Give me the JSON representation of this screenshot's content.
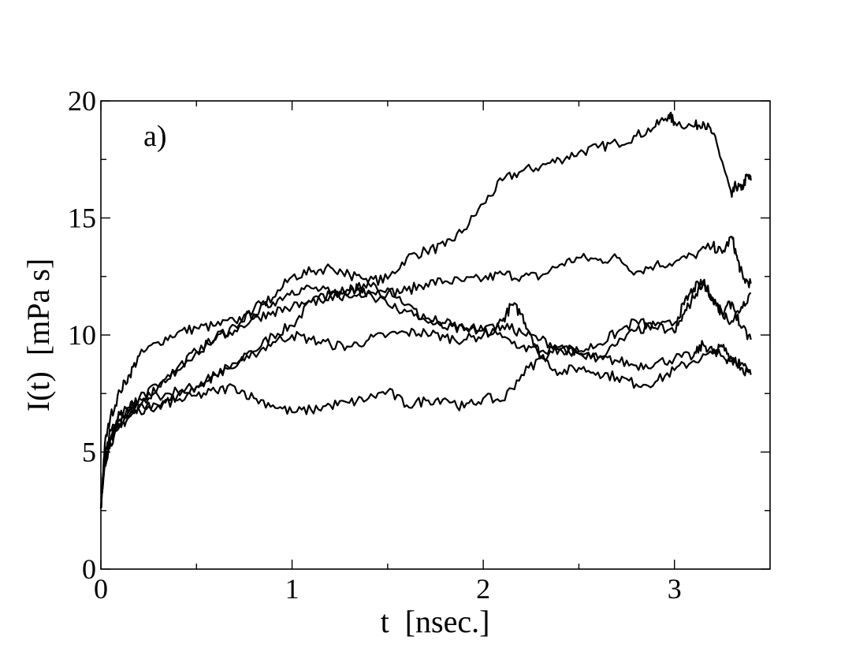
{
  "chart_data": {
    "type": "line",
    "panel_label": "a)",
    "xlabel": "t  [nsec.]",
    "ylabel": "I(t)  [mPa s]",
    "xlim": [
      0,
      3.5
    ],
    "ylim": [
      0,
      20
    ],
    "x_major_ticks": [
      0,
      1,
      2,
      3
    ],
    "x_tick_labels": [
      "0",
      "1",
      "2",
      "3"
    ],
    "x_minor_ticks": [
      0.5,
      1.5,
      2.5
    ],
    "y_major_ticks": [
      0,
      5,
      10,
      15,
      20
    ],
    "y_tick_labels": [
      "0",
      "5",
      "10",
      "15",
      "20"
    ],
    "y_minor_ticks": [
      2.5,
      7.5,
      12.5,
      17.5
    ],
    "grid": false,
    "line_color": "#000000",
    "series": [
      {
        "x": [
          0,
          0.02,
          0.05,
          0.1,
          0.15,
          0.2,
          0.3,
          0.4,
          0.5,
          0.6,
          0.7,
          0.8,
          0.9,
          1.0,
          1.1,
          1.2,
          1.3,
          1.4,
          1.5,
          1.6,
          1.7,
          1.8,
          1.9,
          2.0,
          2.1,
          2.2,
          2.3,
          2.4,
          2.5,
          2.6,
          2.7,
          2.8,
          2.9,
          2.97,
          3.0,
          3.1,
          3.15,
          3.2,
          3.25,
          3.3,
          3.32,
          3.35,
          3.38,
          3.4
        ],
        "y": [
          2.6,
          4.8,
          5.6,
          6.6,
          6.9,
          7.3,
          7.4,
          7.6,
          7.8,
          8.3,
          8.6,
          9.3,
          10.0,
          10.4,
          11.4,
          11.7,
          11.8,
          12.3,
          12.4,
          13.3,
          13.6,
          13.8,
          14.5,
          15.6,
          16.6,
          17.0,
          17.2,
          17.5,
          17.8,
          18.0,
          18.2,
          18.5,
          18.9,
          19.4,
          19.1,
          18.9,
          19.1,
          18.6,
          17.4,
          15.9,
          16.4,
          16.2,
          16.8,
          16.6
        ]
      },
      {
        "x": [
          0,
          0.02,
          0.05,
          0.1,
          0.15,
          0.2,
          0.3,
          0.4,
          0.5,
          0.6,
          0.7,
          0.8,
          0.9,
          1.0,
          1.1,
          1.2,
          1.3,
          1.4,
          1.5,
          1.6,
          1.7,
          1.8,
          1.9,
          2.0,
          2.1,
          2.2,
          2.3,
          2.4,
          2.5,
          2.6,
          2.7,
          2.8,
          2.9,
          3.0,
          3.1,
          3.2,
          3.25,
          3.3,
          3.33,
          3.36,
          3.4
        ],
        "y": [
          2.6,
          5.3,
          6.5,
          7.6,
          8.3,
          9.1,
          9.7,
          10.1,
          10.3,
          10.4,
          10.6,
          10.9,
          11.4,
          11.9,
          12.0,
          11.8,
          11.6,
          11.9,
          11.8,
          11.9,
          12.2,
          12.3,
          12.3,
          12.4,
          12.6,
          12.5,
          12.5,
          13.0,
          13.3,
          13.2,
          13.3,
          12.7,
          13.0,
          13.1,
          13.4,
          13.8,
          13.5,
          14.2,
          13.2,
          12.4,
          12.2
        ]
      },
      {
        "x": [
          0,
          0.02,
          0.05,
          0.1,
          0.15,
          0.2,
          0.3,
          0.4,
          0.5,
          0.6,
          0.7,
          0.8,
          0.9,
          1.0,
          1.1,
          1.2,
          1.3,
          1.4,
          1.5,
          1.6,
          1.7,
          1.8,
          1.9,
          2.0,
          2.1,
          2.15,
          2.2,
          2.25,
          2.3,
          2.4,
          2.5,
          2.6,
          2.7,
          2.8,
          2.9,
          3.0,
          3.1,
          3.2,
          3.25,
          3.3,
          3.35,
          3.4
        ],
        "y": [
          2.6,
          4.6,
          5.5,
          6.2,
          6.6,
          7.0,
          7.8,
          8.6,
          9.3,
          9.8,
          10.4,
          11.1,
          11.6,
          12.5,
          12.7,
          12.9,
          12.6,
          12.2,
          12.0,
          11.3,
          10.6,
          10.3,
          10.2,
          10.2,
          10.6,
          11.3,
          10.9,
          10.0,
          9.1,
          8.4,
          8.6,
          8.4,
          8.2,
          7.9,
          8.0,
          8.5,
          8.9,
          9.2,
          9.5,
          9.0,
          8.6,
          8.3
        ]
      },
      {
        "x": [
          0,
          0.02,
          0.05,
          0.1,
          0.15,
          0.2,
          0.3,
          0.4,
          0.5,
          0.6,
          0.7,
          0.8,
          0.9,
          1.0,
          1.1,
          1.2,
          1.3,
          1.4,
          1.5,
          1.6,
          1.7,
          1.8,
          1.9,
          2.0,
          2.1,
          2.2,
          2.3,
          2.4,
          2.5,
          2.6,
          2.7,
          2.8,
          2.9,
          3.0,
          3.1,
          3.15,
          3.2,
          3.25,
          3.3,
          3.35,
          3.4
        ],
        "y": [
          2.6,
          4.5,
          5.4,
          6.1,
          6.5,
          6.8,
          7.0,
          7.4,
          7.8,
          8.3,
          8.8,
          9.2,
          9.7,
          10.0,
          9.8,
          9.6,
          9.5,
          9.8,
          10.0,
          10.1,
          10.1,
          9.9,
          9.8,
          10.0,
          10.4,
          10.1,
          9.8,
          9.5,
          9.2,
          9.0,
          8.9,
          8.7,
          8.8,
          9.0,
          9.1,
          9.6,
          9.3,
          9.1,
          8.9,
          8.8,
          8.5
        ]
      },
      {
        "x": [
          0,
          0.02,
          0.05,
          0.1,
          0.15,
          0.2,
          0.3,
          0.4,
          0.5,
          0.6,
          0.7,
          0.8,
          0.9,
          1.0,
          1.1,
          1.2,
          1.3,
          1.4,
          1.5,
          1.6,
          1.7,
          1.8,
          1.9,
          2.0,
          2.1,
          2.2,
          2.3,
          2.4,
          2.5,
          2.6,
          2.7,
          2.8,
          2.9,
          3.0,
          3.05,
          3.1,
          3.15,
          3.2,
          3.25,
          3.3,
          3.35,
          3.4
        ],
        "y": [
          2.6,
          4.9,
          5.9,
          6.6,
          6.8,
          6.9,
          7.0,
          7.2,
          7.4,
          7.6,
          7.8,
          7.3,
          7.0,
          6.7,
          6.8,
          7.0,
          7.1,
          7.3,
          7.6,
          7.0,
          7.2,
          7.3,
          6.9,
          7.3,
          7.2,
          8.3,
          9.0,
          9.4,
          9.3,
          9.6,
          10.1,
          10.6,
          10.3,
          10.5,
          11.3,
          12.0,
          12.2,
          11.6,
          10.9,
          10.6,
          11.2,
          11.8
        ]
      },
      {
        "x": [
          0,
          0.02,
          0.05,
          0.1,
          0.15,
          0.2,
          0.3,
          0.4,
          0.5,
          0.6,
          0.7,
          0.8,
          0.9,
          1.0,
          1.1,
          1.2,
          1.3,
          1.35,
          1.4,
          1.5,
          1.6,
          1.7,
          1.8,
          1.9,
          2.0,
          2.1,
          2.2,
          2.3,
          2.4,
          2.5,
          2.6,
          2.7,
          2.8,
          2.9,
          3.0,
          3.05,
          3.1,
          3.15,
          3.2,
          3.25,
          3.3,
          3.35,
          3.4
        ],
        "y": [
          2.6,
          4.7,
          5.6,
          6.4,
          6.8,
          7.3,
          7.8,
          8.5,
          9.3,
          9.9,
          10.2,
          10.7,
          11.0,
          11.2,
          11.4,
          11.7,
          11.9,
          12.0,
          11.8,
          11.3,
          11.0,
          10.7,
          10.5,
          10.3,
          10.2,
          9.9,
          9.5,
          9.3,
          9.4,
          9.2,
          9.0,
          9.6,
          10.2,
          10.4,
          10.1,
          10.9,
          11.6,
          12.3,
          11.5,
          10.9,
          11.4,
          10.3,
          9.8
        ]
      }
    ]
  }
}
